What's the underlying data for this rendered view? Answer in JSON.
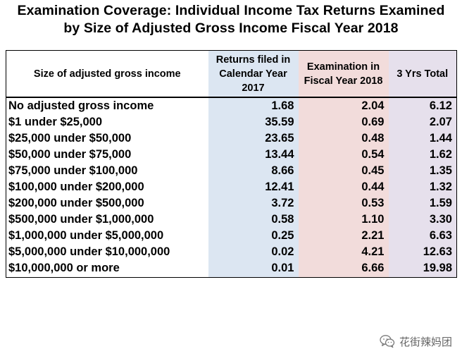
{
  "title": {
    "line1": "Examination Coverage:  Individual Income Tax Returns Examined",
    "line2": "by Size of Adjusted Gross Income Fiscal Year 2018"
  },
  "table": {
    "headers": {
      "col0": "Size of adjusted gross income",
      "col1": "Returns filed in Calendar Year 2017",
      "col2": "Examination in Fiscal Year 2018",
      "col3": "3 Yrs Total"
    },
    "rows": [
      {
        "label": "No adjusted gross income",
        "returns_2017": "1.68",
        "exam_2018": "2.04",
        "three_yr": "6.12"
      },
      {
        "label": "$1 under $25,000",
        "returns_2017": "35.59",
        "exam_2018": "0.69",
        "three_yr": "2.07"
      },
      {
        "label": "$25,000 under $50,000",
        "returns_2017": "23.65",
        "exam_2018": "0.48",
        "three_yr": "1.44"
      },
      {
        "label": "$50,000 under $75,000",
        "returns_2017": "13.44",
        "exam_2018": "0.54",
        "three_yr": "1.62"
      },
      {
        "label": "$75,000 under $100,000",
        "returns_2017": "8.66",
        "exam_2018": "0.45",
        "three_yr": "1.35"
      },
      {
        "label": "$100,000 under $200,000",
        "returns_2017": "12.41",
        "exam_2018": "0.44",
        "three_yr": "1.32"
      },
      {
        "label": "$200,000 under $500,000",
        "returns_2017": "3.72",
        "exam_2018": "0.53",
        "three_yr": "1.59"
      },
      {
        "label": "$500,000 under $1,000,000",
        "returns_2017": "0.58",
        "exam_2018": "1.10",
        "three_yr": "3.30"
      },
      {
        "label": "$1,000,000 under $5,000,000",
        "returns_2017": "0.25",
        "exam_2018": "2.21",
        "three_yr": "6.63"
      },
      {
        "label": "$5,000,000 under $10,000,000",
        "returns_2017": "0.02",
        "exam_2018": "4.21",
        "three_yr": "12.63"
      },
      {
        "label": "$10,000,000 or more",
        "returns_2017": "0.01",
        "exam_2018": "6.66",
        "three_yr": "19.98"
      }
    ]
  },
  "watermark": {
    "icon": "wechat-icon",
    "text": "花街辣妈团"
  },
  "colors": {
    "returns_col_bg": "#dce6f2",
    "exam_col_bg": "#f2dcdb",
    "total_col_bg": "#e6e0ec"
  }
}
